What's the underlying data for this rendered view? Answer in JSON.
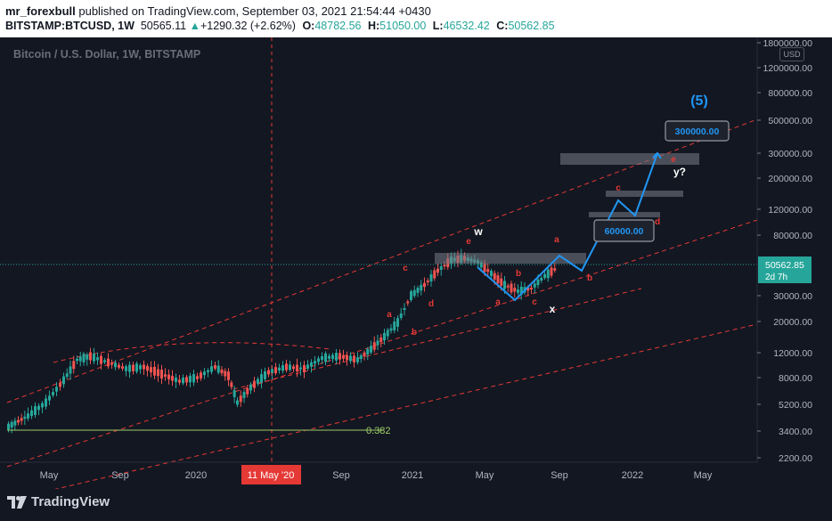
{
  "publish": {
    "user": "mr_forexbull",
    "text": " published on TradingView.com, September 03, 2021 21:54:44 +0430"
  },
  "ohlc": {
    "symbol": "BITSTAMP:BTCUSD, 1W",
    "last": "50565.11",
    "change_arrow": "▲",
    "change": "+1290.32 (+2.62%)",
    "o_label": "O:",
    "o": "48782.56",
    "h_label": "H:",
    "h": "51050.00",
    "l_label": "L:",
    "l": "46532.42",
    "c_label": "C:",
    "c": "50562.85"
  },
  "chart": {
    "title": "Bitcoin / U.S. Dollar, 1W, BITSTAMP",
    "currency": "USD",
    "price_ticks": [
      "1800000.00",
      "1200000.00",
      "800000.00",
      "500000.00",
      "300000.00",
      "200000.00",
      "120000.00",
      "80000.00",
      "30000.00",
      "20000.00",
      "12000.00",
      "8000.00",
      "5200.00",
      "3400.00",
      "2200.00"
    ],
    "time_ticks": [
      "May",
      "Sep",
      "2020",
      "Sep",
      "2021",
      "May",
      "Sep",
      "2022",
      "May"
    ],
    "crosshair_time": "11 May '20",
    "last_price": "50562.85",
    "countdown": "2d 7h",
    "fib_label": "0.382",
    "target_boxes": [
      "300000.00",
      "60000.00"
    ],
    "wave_labels": [
      "(5)",
      "w",
      "x",
      "y?",
      "a",
      "b",
      "c",
      "d",
      "e"
    ],
    "colors": {
      "background": "#131722",
      "up_candle": "#26a69a",
      "down_candle": "#ef5350",
      "channel": "#e53935",
      "path": "#2196f3",
      "fib": "#9ccc65",
      "crosshair": "#e53935"
    }
  },
  "brand": "TradingView"
}
